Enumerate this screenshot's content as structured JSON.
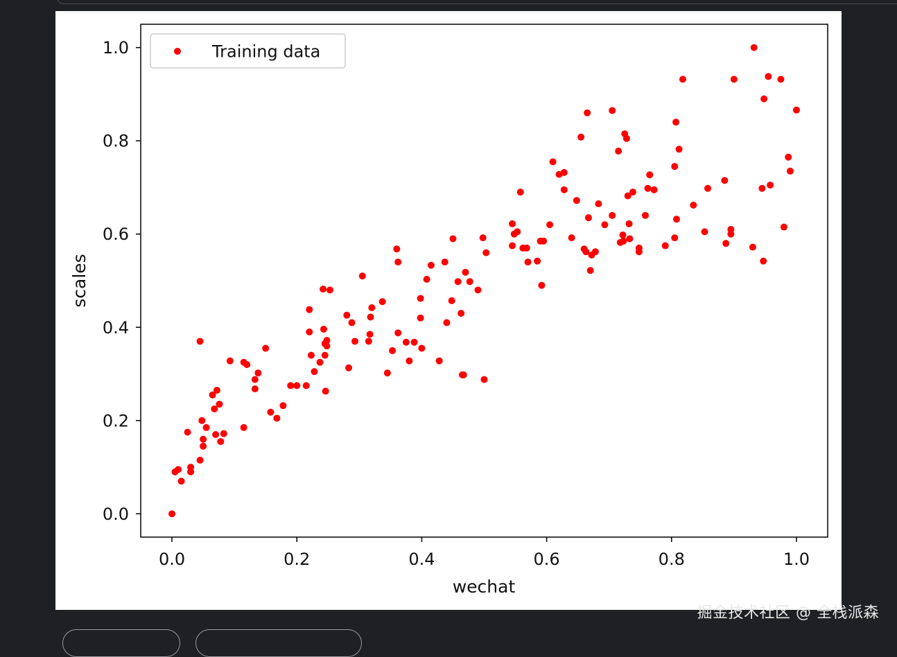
{
  "watermark": "掘金技术社区 @ 全栈派森",
  "chart_data": {
    "type": "scatter",
    "title": "",
    "xlabel": "wechat",
    "ylabel": "scales",
    "xlim": [
      -0.05,
      1.05
    ],
    "ylim": [
      -0.05,
      1.05
    ],
    "xticks": [
      "0.0",
      "0.2",
      "0.4",
      "0.6",
      "0.8",
      "1.0"
    ],
    "yticks": [
      "0.0",
      "0.2",
      "0.4",
      "0.6",
      "0.8",
      "1.0"
    ],
    "grid": false,
    "legend_position": "upper-left",
    "marker_color": "#ff0000",
    "series": [
      {
        "name": "Training data",
        "points": [
          [
            0.0,
            0.0
          ],
          [
            0.005,
            0.09
          ],
          [
            0.01,
            0.095
          ],
          [
            0.015,
            0.07
          ],
          [
            0.025,
            0.175
          ],
          [
            0.03,
            0.09
          ],
          [
            0.03,
            0.1
          ],
          [
            0.045,
            0.37
          ],
          [
            0.045,
            0.115
          ],
          [
            0.048,
            0.2
          ],
          [
            0.05,
            0.16
          ],
          [
            0.05,
            0.145
          ],
          [
            0.055,
            0.185
          ],
          [
            0.065,
            0.255
          ],
          [
            0.068,
            0.225
          ],
          [
            0.07,
            0.17
          ],
          [
            0.072,
            0.265
          ],
          [
            0.076,
            0.235
          ],
          [
            0.078,
            0.155
          ],
          [
            0.083,
            0.172
          ],
          [
            0.093,
            0.328
          ],
          [
            0.115,
            0.185
          ],
          [
            0.115,
            0.325
          ],
          [
            0.12,
            0.32
          ],
          [
            0.133,
            0.268
          ],
          [
            0.133,
            0.288
          ],
          [
            0.138,
            0.302
          ],
          [
            0.15,
            0.355
          ],
          [
            0.158,
            0.218
          ],
          [
            0.168,
            0.205
          ],
          [
            0.178,
            0.232
          ],
          [
            0.19,
            0.275
          ],
          [
            0.2,
            0.275
          ],
          [
            0.215,
            0.275
          ],
          [
            0.22,
            0.39
          ],
          [
            0.22,
            0.438
          ],
          [
            0.223,
            0.34
          ],
          [
            0.228,
            0.305
          ],
          [
            0.237,
            0.325
          ],
          [
            0.242,
            0.482
          ],
          [
            0.243,
            0.396
          ],
          [
            0.245,
            0.365
          ],
          [
            0.245,
            0.34
          ],
          [
            0.246,
            0.263
          ],
          [
            0.248,
            0.372
          ],
          [
            0.248,
            0.36
          ],
          [
            0.253,
            0.48
          ],
          [
            0.28,
            0.426
          ],
          [
            0.283,
            0.313
          ],
          [
            0.288,
            0.41
          ],
          [
            0.293,
            0.37
          ],
          [
            0.305,
            0.51
          ],
          [
            0.315,
            0.37
          ],
          [
            0.317,
            0.385
          ],
          [
            0.318,
            0.422
          ],
          [
            0.32,
            0.442
          ],
          [
            0.337,
            0.455
          ],
          [
            0.345,
            0.302
          ],
          [
            0.353,
            0.35
          ],
          [
            0.36,
            0.568
          ],
          [
            0.362,
            0.54
          ],
          [
            0.362,
            0.388
          ],
          [
            0.375,
            0.368
          ],
          [
            0.38,
            0.328
          ],
          [
            0.388,
            0.368
          ],
          [
            0.398,
            0.42
          ],
          [
            0.398,
            0.462
          ],
          [
            0.4,
            0.355
          ],
          [
            0.408,
            0.503
          ],
          [
            0.415,
            0.533
          ],
          [
            0.428,
            0.328
          ],
          [
            0.437,
            0.54
          ],
          [
            0.44,
            0.41
          ],
          [
            0.448,
            0.457
          ],
          [
            0.45,
            0.59
          ],
          [
            0.458,
            0.498
          ],
          [
            0.463,
            0.43
          ],
          [
            0.465,
            0.298
          ],
          [
            0.467,
            0.298
          ],
          [
            0.47,
            0.518
          ],
          [
            0.477,
            0.498
          ],
          [
            0.49,
            0.48
          ],
          [
            0.498,
            0.592
          ],
          [
            0.5,
            0.288
          ],
          [
            0.503,
            0.56
          ],
          [
            0.545,
            0.575
          ],
          [
            0.545,
            0.622
          ],
          [
            0.548,
            0.6
          ],
          [
            0.553,
            0.605
          ],
          [
            0.558,
            0.69
          ],
          [
            0.562,
            0.57
          ],
          [
            0.568,
            0.57
          ],
          [
            0.57,
            0.54
          ],
          [
            0.585,
            0.542
          ],
          [
            0.59,
            0.585
          ],
          [
            0.592,
            0.49
          ],
          [
            0.595,
            0.585
          ],
          [
            0.605,
            0.62
          ],
          [
            0.61,
            0.755
          ],
          [
            0.62,
            0.728
          ],
          [
            0.628,
            0.732
          ],
          [
            0.628,
            0.695
          ],
          [
            0.64,
            0.592
          ],
          [
            0.648,
            0.672
          ],
          [
            0.655,
            0.808
          ],
          [
            0.66,
            0.568
          ],
          [
            0.663,
            0.562
          ],
          [
            0.665,
            0.86
          ],
          [
            0.667,
            0.635
          ],
          [
            0.67,
            0.522
          ],
          [
            0.672,
            0.555
          ],
          [
            0.678,
            0.562
          ],
          [
            0.683,
            0.665
          ],
          [
            0.693,
            0.62
          ],
          [
            0.705,
            0.865
          ],
          [
            0.705,
            0.64
          ],
          [
            0.715,
            0.778
          ],
          [
            0.718,
            0.582
          ],
          [
            0.722,
            0.598
          ],
          [
            0.723,
            0.585
          ],
          [
            0.725,
            0.815
          ],
          [
            0.728,
            0.805
          ],
          [
            0.73,
            0.682
          ],
          [
            0.732,
            0.622
          ],
          [
            0.733,
            0.59
          ],
          [
            0.738,
            0.69
          ],
          [
            0.748,
            0.562
          ],
          [
            0.748,
            0.57
          ],
          [
            0.758,
            0.64
          ],
          [
            0.762,
            0.698
          ],
          [
            0.765,
            0.727
          ],
          [
            0.772,
            0.695
          ],
          [
            0.79,
            0.575
          ],
          [
            0.805,
            0.592
          ],
          [
            0.805,
            0.745
          ],
          [
            0.807,
            0.84
          ],
          [
            0.808,
            0.632
          ],
          [
            0.812,
            0.782
          ],
          [
            0.818,
            0.932
          ],
          [
            0.835,
            0.662
          ],
          [
            0.853,
            0.605
          ],
          [
            0.858,
            0.698
          ],
          [
            0.885,
            0.715
          ],
          [
            0.887,
            0.58
          ],
          [
            0.895,
            0.61
          ],
          [
            0.895,
            0.6
          ],
          [
            0.9,
            0.932
          ],
          [
            0.93,
            0.572
          ],
          [
            0.932,
            1.0
          ],
          [
            0.945,
            0.698
          ],
          [
            0.947,
            0.542
          ],
          [
            0.948,
            0.89
          ],
          [
            0.955,
            0.938
          ],
          [
            0.958,
            0.705
          ],
          [
            0.975,
            0.932
          ],
          [
            0.98,
            0.615
          ],
          [
            0.987,
            0.765
          ],
          [
            0.99,
            0.735
          ],
          [
            1.0,
            0.866
          ]
        ]
      }
    ]
  }
}
